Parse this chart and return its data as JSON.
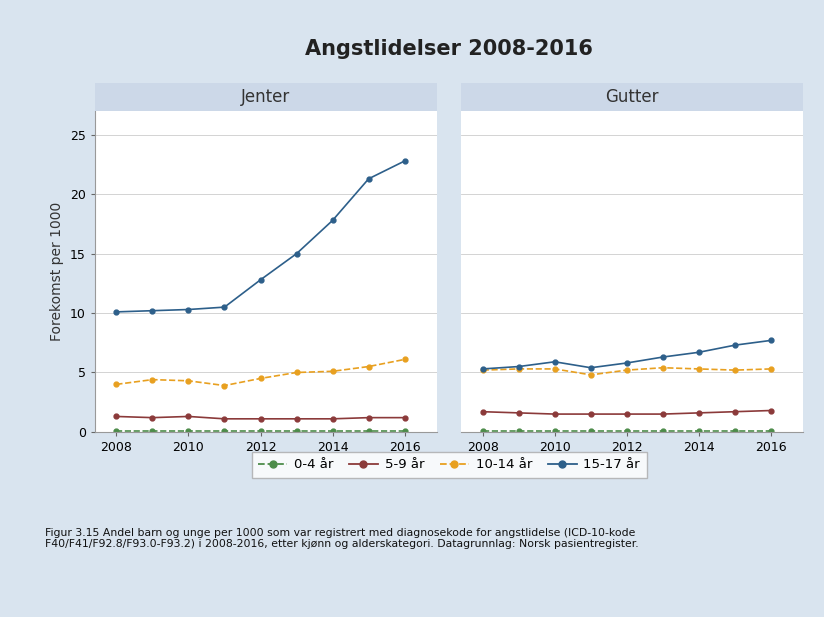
{
  "title": "Angstlidelser 2008-2016",
  "ylabel": "Forekomst per 1000",
  "years": [
    2008,
    2009,
    2010,
    2011,
    2012,
    2013,
    2014,
    2015,
    2016
  ],
  "jenter": {
    "label": "Jenter",
    "age_0_4": [
      0.1,
      0.1,
      0.1,
      0.1,
      0.1,
      0.1,
      0.1,
      0.1,
      0.1
    ],
    "age_5_9": [
      1.3,
      1.2,
      1.3,
      1.1,
      1.1,
      1.1,
      1.1,
      1.2,
      1.2
    ],
    "age_10_14": [
      4.0,
      4.4,
      4.3,
      3.9,
      4.5,
      5.0,
      5.1,
      5.5,
      6.1
    ],
    "age_15_17": [
      10.1,
      10.2,
      10.3,
      10.5,
      12.8,
      15.0,
      17.8,
      21.3,
      22.8
    ]
  },
  "gutter": {
    "label": "Gutter",
    "age_0_4": [
      0.1,
      0.1,
      0.1,
      0.1,
      0.1,
      0.1,
      0.1,
      0.1,
      0.1
    ],
    "age_5_9": [
      1.7,
      1.6,
      1.5,
      1.5,
      1.5,
      1.5,
      1.6,
      1.7,
      1.8
    ],
    "age_10_14": [
      5.2,
      5.3,
      5.3,
      4.8,
      5.2,
      5.4,
      5.3,
      5.2,
      5.3
    ],
    "age_15_17": [
      5.3,
      5.5,
      5.9,
      5.4,
      5.8,
      6.3,
      6.7,
      7.3,
      7.7
    ]
  },
  "colors": {
    "age_0_4": "#4d8c4a",
    "age_5_9": "#8b3a3a",
    "age_10_14": "#e8a020",
    "age_15_17": "#2d5f8a"
  },
  "legend_labels": [
    "0-4 år",
    "5-9 år",
    "10-14 år",
    "15-17 år"
  ],
  "ylim": [
    0,
    27
  ],
  "yticks": [
    0,
    5,
    10,
    15,
    20,
    25
  ],
  "xticks": [
    2008,
    2010,
    2012,
    2014,
    2016
  ],
  "background_color": "#d9e4ef",
  "panel_bg": "#ffffff",
  "header_bg": "#ccd8e8",
  "title_fontsize": 15,
  "panel_title_fontsize": 12,
  "axis_label_fontsize": 10,
  "tick_fontsize": 9,
  "legend_fontsize": 9.5,
  "caption": "Figur 3.15 Andel barn og unge per 1000 som var registrert med diagnosekode for angstlidelse (ICD-10-kode\nF40/F41/F92.8/F93.0-F93.2) i 2008-2016, etter kjønn og alderskategori. Datagrunnlag: Norsk pasientregister."
}
